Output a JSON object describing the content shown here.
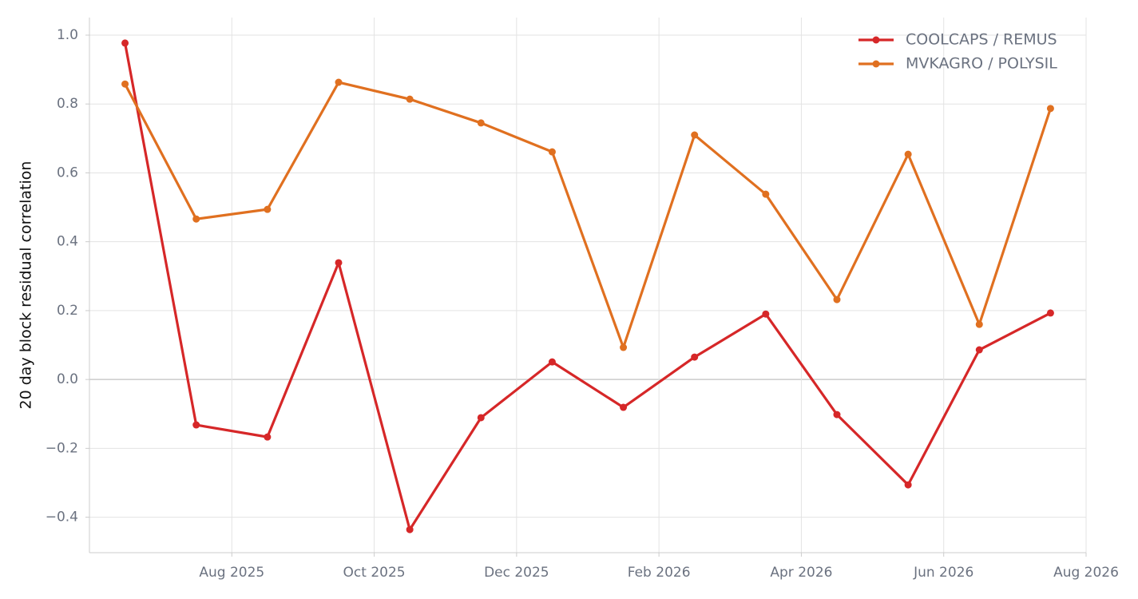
{
  "chart_data": {
    "type": "line",
    "y_label": "20 day block residual correlation",
    "x": [
      "2025-06",
      "2025-07",
      "2025-08",
      "2025-09",
      "2025-10",
      "2025-11",
      "2025-12",
      "2026-01",
      "2026-02",
      "2026-03",
      "2026-04",
      "2026-05",
      "2026-06",
      "2026-07"
    ],
    "series": [
      {
        "name": "COOLCAPS / REMUS",
        "color": "#d62728",
        "values": [
          0.977,
          -0.132,
          -0.167,
          0.339,
          -0.436,
          -0.111,
          0.051,
          -0.081,
          0.065,
          0.19,
          -0.102,
          -0.306,
          0.086,
          0.193
        ]
      },
      {
        "name": "MVKAGRO / POLYSIL",
        "color": "#e07020",
        "values": [
          0.858,
          0.466,
          0.494,
          0.863,
          0.814,
          0.745,
          0.661,
          0.093,
          0.71,
          0.538,
          0.232,
          0.654,
          0.16,
          0.787
        ]
      }
    ],
    "xlim": [
      "2025-06",
      "2026-08"
    ],
    "xticks": [
      {
        "value": "2025-08",
        "label": "Aug 2025"
      },
      {
        "value": "2025-10",
        "label": "Oct 2025"
      },
      {
        "value": "2025-12",
        "label": "Dec 2025"
      },
      {
        "value": "2026-02",
        "label": "Feb 2026"
      },
      {
        "value": "2026-04",
        "label": "Apr 2026"
      },
      {
        "value": "2026-06",
        "label": "Jun 2026"
      },
      {
        "value": "2026-08",
        "label": "Aug 2026"
      }
    ],
    "ylim": [
      -0.503,
      1.051
    ],
    "yticks": [
      {
        "value": -0.4,
        "label": "−0.4"
      },
      {
        "value": -0.2,
        "label": "−0.2"
      },
      {
        "value": 0,
        "label": "0.0"
      },
      0.2,
      0.4,
      0.6,
      0.8,
      {
        "value": 1,
        "label": "1.0"
      }
    ],
    "grid": true,
    "legend": "upper right"
  }
}
